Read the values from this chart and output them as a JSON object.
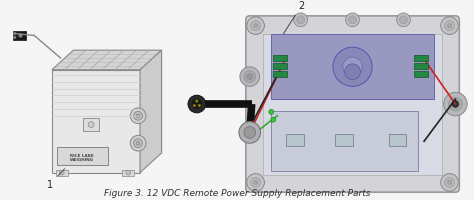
{
  "title": "Figure 3. 12 VDC Remote Power Supply Replacement Parts",
  "title_fontsize": 6.5,
  "title_style": "italic",
  "bg_color": "#f5f5f5",
  "fig_width": 4.74,
  "fig_height": 2.01,
  "label1": "1",
  "label2": "2",
  "box_face": "#e8e8e8",
  "box_top": "#d4d4d4",
  "box_right": "#cccccc",
  "box_edge": "#888888",
  "right_box_outer": "#c8c8cc",
  "right_box_inner_bg": "#d0d2dc",
  "right_inner_light": "#dcdee8",
  "board_purple": "#9898c0",
  "board_purple2": "#a0a0c8",
  "board_lower": "#c8ccd8",
  "green_terminal": "#228844",
  "wire_red": "#cc2222",
  "wire_green": "#33aa33",
  "wire_black": "#222222",
  "wire_red2": "#dd3333",
  "connector_dark": "#1a1a1a",
  "plug_gray": "#555555",
  "plug_gold": "#aaa000",
  "fitting_gray": "#aaaaaa",
  "fitting_dark": "#888888"
}
